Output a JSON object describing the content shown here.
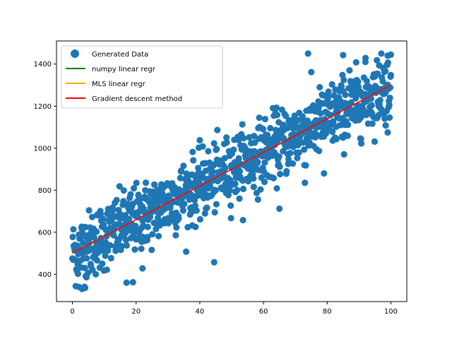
{
  "chart_data": {
    "type": "scatter",
    "title": "",
    "xlabel": "",
    "ylabel": "",
    "xlim": [
      -5,
      105
    ],
    "ylim": [
      270,
      1510
    ],
    "xticks": [
      0,
      20,
      40,
      60,
      80,
      100
    ],
    "yticks": [
      400,
      600,
      800,
      1000,
      1200,
      1400
    ],
    "grid": false,
    "legend_position": "top-left",
    "scatter": {
      "name": "Generated Data",
      "color": "#1f77b4",
      "count": 1000,
      "x_range": [
        0,
        100
      ],
      "trend": {
        "intercept": 500,
        "slope": 8
      },
      "spread_sd": 80,
      "notable_points": [
        [
          2,
          340
        ],
        [
          3,
          330
        ],
        [
          4,
          335
        ],
        [
          17,
          360
        ],
        [
          19,
          362
        ],
        [
          22,
          428
        ],
        [
          44.5,
          457
        ],
        [
          65,
          712
        ],
        [
          74,
          1450
        ],
        [
          85,
          1443
        ],
        [
          87,
          1370
        ],
        [
          92,
          1410
        ],
        [
          97,
          1450
        ],
        [
          99,
          1440
        ],
        [
          100,
          1445
        ],
        [
          85,
          1050
        ],
        [
          99,
          1075
        ],
        [
          79,
          880
        ],
        [
          73,
          835
        ]
      ]
    },
    "lines": [
      {
        "name": "numpy linear regr",
        "color": "#008000",
        "x": [
          0,
          100
        ],
        "y": [
          500,
          1300
        ]
      },
      {
        "name": "MLS linear regr",
        "color": "#ffa500",
        "x": [
          0,
          100
        ],
        "y": [
          500,
          1300
        ]
      },
      {
        "name": "Gradient descent method",
        "color": "#ff0000",
        "x": [
          0,
          100
        ],
        "y": [
          500,
          1300
        ]
      }
    ]
  }
}
